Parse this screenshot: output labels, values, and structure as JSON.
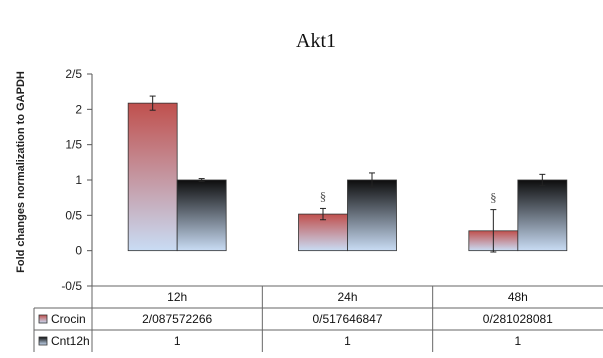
{
  "chart_data": {
    "type": "bar",
    "title": "Akt1",
    "ylabel": "Fold changes normalization to GAPDH",
    "xlabel": "",
    "categories": [
      "12h",
      "24h",
      "48h"
    ],
    "ylim": [
      -0.5,
      2.5
    ],
    "yticks": [
      -0.5,
      0,
      0.5,
      1,
      1.5,
      2,
      2.5
    ],
    "ytick_labels": [
      "-0/5",
      "0",
      "0/5",
      "1",
      "1/5",
      "2",
      "2/5"
    ],
    "grid": false,
    "legend": "data-table",
    "series": [
      {
        "name": "Crocin",
        "values": [
          2.087572266,
          0.517646847,
          0.281028081
        ],
        "value_labels": [
          "2/087572266",
          "0/517646847",
          "0/281028081"
        ],
        "error": [
          0.1,
          0.08,
          0.3
        ],
        "color_top": "#c0504d",
        "color_bottom": "#c9dcf4"
      },
      {
        "name": "Cnt12h",
        "values": [
          1,
          1,
          1
        ],
        "value_labels": [
          "1",
          "1",
          "1"
        ],
        "error": [
          0.02,
          0.1,
          0.08
        ],
        "color_top": "#0d0d0d",
        "color_bottom": "#c9dcf4"
      }
    ],
    "annotations": [
      {
        "text": "§",
        "category": "24h",
        "series": "Crocin"
      },
      {
        "text": "§",
        "category": "48h",
        "series": "Crocin"
      }
    ]
  }
}
